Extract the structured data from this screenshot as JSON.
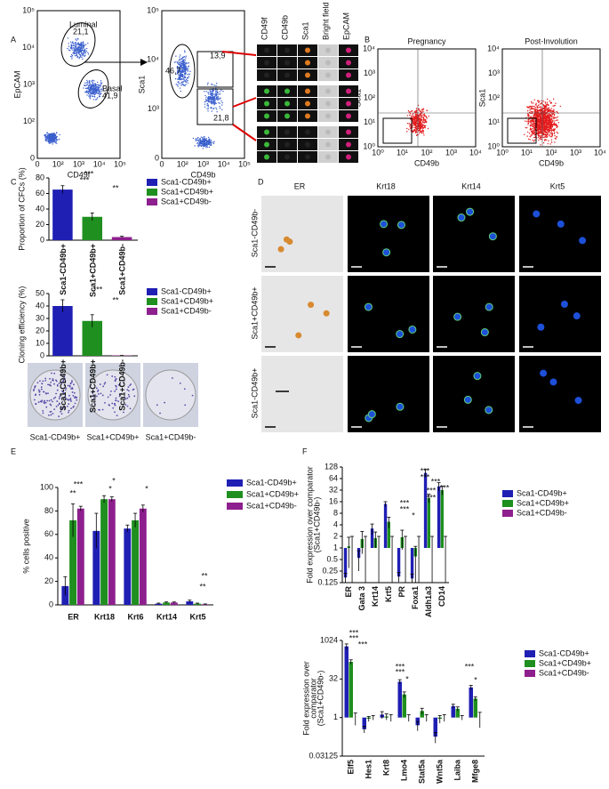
{
  "figure": {
    "panel_labels": [
      "A",
      "B",
      "C",
      "D",
      "E",
      "F"
    ],
    "A": {
      "plot1": {
        "ylabel": "EpCAM",
        "xlabel": "CD49f",
        "xticks": [
          "0",
          "10²",
          "10³",
          "10⁴",
          "10⁵"
        ],
        "yticks": [
          "0",
          "10²",
          "10³",
          "10⁴",
          "10⁵"
        ],
        "gates": [
          {
            "name": "Luminal",
            "value": "21,1"
          },
          {
            "name": "Basal",
            "value": "41,9"
          }
        ]
      },
      "plot2": {
        "ylabel": "Sca1",
        "xlabel": "CD49b",
        "xticks": [
          "0",
          "10²",
          "10³",
          "10⁴",
          "10⁵"
        ],
        "yticks": [
          "0",
          "10³",
          "10⁴",
          "10⁵"
        ],
        "gates": [
          "46,7",
          "13,9",
          "21,8"
        ]
      },
      "image_columns": [
        "CD49f",
        "CD49b",
        "Sca1",
        "Bright field",
        "EpCAM"
      ]
    },
    "B": {
      "plots": [
        {
          "title": "Pregnancy",
          "ylabel": "Sca1",
          "xlabel": "CD49b",
          "xticks": [
            "10⁰",
            "10¹",
            "10²",
            "10³",
            "10⁴"
          ],
          "yticks": [
            "10⁰",
            "10¹",
            "10²",
            "10³",
            "10⁴"
          ]
        },
        {
          "title": "Post-Involution",
          "ylabel": "Sca1",
          "xlabel": "CD49b",
          "xticks": [
            "10⁰",
            "10¹",
            "10²",
            "10³",
            "10⁴"
          ],
          "yticks": [
            "10⁰",
            "10¹",
            "10²",
            "10³",
            "10⁴"
          ]
        }
      ]
    },
    "C": {
      "plates": [
        "Sca1-CD49b+",
        "Sca1+CD49b+",
        "Sca1+CD49b-"
      ]
    },
    "D": {
      "columns": [
        "ER",
        "Krt18",
        "Krt14",
        "Krt5"
      ],
      "rows": [
        "Sca1-CD49b-",
        "Sca1+CD49b+",
        "Sca1-CD49b+"
      ]
    }
  },
  "chart_data": [
    {
      "type": "bar",
      "ylabel": [
        "Proportion of CFCs (%)"
      ],
      "categories": [
        "Sca1-CD49b+",
        "Sca1+CD49b+",
        "Sca1+CD49b-"
      ],
      "series": [
        {
          "name": "Sca1-CD49b+",
          "color": "#1f1fb4",
          "values": [
            65,
            30,
            4
          ],
          "errors": [
            5,
            5,
            1
          ]
        }
      ],
      "bar_colors": [
        "#1f1fb4",
        "#1f8f1f",
        "#8e1f8e"
      ],
      "legend": [
        "Sca1-CD49b+",
        "Sca1+CD49b+",
        "Sca1+CD49b-"
      ],
      "ylim": [
        0,
        80
      ],
      "yticks": [
        0,
        20,
        40,
        60,
        80
      ],
      "annotations": [
        "***",
        "***",
        "**"
      ]
    },
    {
      "type": "bar",
      "ylabel": [
        "Cloning efficiency (%)"
      ],
      "categories": [
        "Sca1-CD49b+",
        "Sca1+CD49b+",
        "Sca1+CD49b-"
      ],
      "series": [
        {
          "name": "Sca1-CD49b+",
          "color": "#1f1fb4",
          "values": [
            40,
            28,
            0.3
          ],
          "errors": [
            5,
            5,
            0
          ]
        }
      ],
      "bar_colors": [
        "#1f1fb4",
        "#1f8f1f",
        "#8e1f8e"
      ],
      "legend": [
        "Sca1-CD49b+",
        "Sca1+CD49b+",
        "Sca1+CD49b-"
      ],
      "ylim": [
        0,
        50
      ],
      "yticks": [
        0,
        10,
        20,
        30,
        40,
        50
      ],
      "annotations": [
        "***",
        "**"
      ]
    },
    {
      "type": "bar",
      "ylabel": [
        "% cells positive"
      ],
      "categories": [
        "ER",
        "Krt18",
        "Krt6",
        "Krt14",
        "Krt5"
      ],
      "series": [
        {
          "name": "Sca1-CD49b+",
          "color": "#1f1fb4",
          "values": [
            16,
            63,
            65,
            1,
            3
          ],
          "errors": [
            8,
            15,
            3,
            0.5,
            1
          ]
        },
        {
          "name": "Sca1+CD49b+",
          "color": "#1f8f1f",
          "values": [
            72,
            90,
            72,
            2,
            1
          ],
          "errors": [
            14,
            3,
            6,
            0.5,
            0.5
          ]
        },
        {
          "name": "Sca1+CD49b-",
          "color": "#8e1f8e",
          "values": [
            82,
            90,
            82,
            2,
            0.5
          ],
          "errors": [
            2,
            2,
            3,
            0.5,
            0.3
          ]
        }
      ],
      "ylim": [
        0,
        100
      ],
      "yticks": [
        0,
        20,
        40,
        60,
        80,
        100
      ],
      "annotations": [
        "***",
        "**",
        "*",
        "*",
        "*",
        "**",
        "**"
      ]
    },
    {
      "type": "bar",
      "log": true,
      "ylabel": [
        "Fold expression over comparator",
        "(Sca1+CD49b-)"
      ],
      "categories": [
        "ER",
        "Gata 3",
        "Krt14",
        "Krt5",
        "PR",
        "Foxa1",
        "Aldh1a3",
        "CD14"
      ],
      "series": [
        {
          "name": "Sca1-CD49b+",
          "color": "#1f1fb4",
          "values": [
            0.17,
            0.55,
            3.2,
            14,
            0.18,
            0.16,
            90,
            40
          ],
          "errors": [
            0.05,
            0.3,
            1,
            2,
            0.05,
            0.05,
            20,
            10
          ]
        },
        {
          "name": "Sca1+CD49b+",
          "color": "#1f8f1f",
          "values": [
            1.1,
            1.7,
            1.8,
            4.8,
            1.9,
            0.6,
            20,
            32
          ],
          "errors": [
            0.8,
            1,
            0.8,
            1.5,
            1,
            0.5,
            5,
            8
          ]
        },
        {
          "name": "Sca1+CD49b-",
          "color": "#8e1f8e",
          "values": [
            1,
            1,
            1,
            1,
            1,
            1,
            1,
            1
          ],
          "errors": [
            1,
            1,
            1,
            1,
            1,
            1,
            1,
            1
          ]
        }
      ],
      "ylim": [
        0.125,
        128
      ],
      "yticks": [
        0.125,
        0.25,
        0.5,
        1,
        2,
        4,
        8,
        16,
        32,
        64,
        128
      ],
      "annotations": [
        "***",
        "***",
        "*",
        "***",
        "***",
        "***",
        "***",
        "***",
        "***"
      ]
    },
    {
      "type": "bar",
      "log": true,
      "ylabel": [
        "Fold expression over",
        "comparator",
        "(Sca1+CD49b-)"
      ],
      "categories": [
        "Elf5",
        "Hes1",
        "Krt8",
        "Lmo4",
        "Stat5a",
        "Wnt5a",
        "Laiba",
        "Mfge8"
      ],
      "series": [
        {
          "name": "Sca1-CD49b+",
          "color": "#1f1fb4",
          "values": [
            600,
            0.35,
            1.3,
            25,
            0.5,
            0.18,
            2.8,
            15
          ],
          "errors": [
            150,
            0.1,
            0.4,
            5,
            0.2,
            0.08,
            0.5,
            3
          ]
        },
        {
          "name": "Sca1+CD49b+",
          "color": "#1f8f1f",
          "values": [
            150,
            0.9,
            1.1,
            8,
            1.8,
            0.9,
            2.2,
            5.5
          ],
          "errors": [
            30,
            0.2,
            0.3,
            2,
            0.5,
            0.3,
            0.4,
            1
          ]
        },
        {
          "name": "Sca1+CD49b-",
          "color": "#8e1f8e",
          "values": [
            1,
            1,
            1,
            1,
            1,
            1,
            1,
            1
          ],
          "errors": [
            0.5,
            0.2,
            0.3,
            0.3,
            0.3,
            0.3,
            0.2,
            0.6
          ]
        }
      ],
      "ylim": [
        0.03125,
        1024
      ],
      "yticks": [
        0.03125,
        1,
        32,
        1024
      ],
      "annotations": [
        "***",
        "***",
        "***",
        "***",
        "***",
        "*",
        "***",
        "*"
      ]
    }
  ]
}
